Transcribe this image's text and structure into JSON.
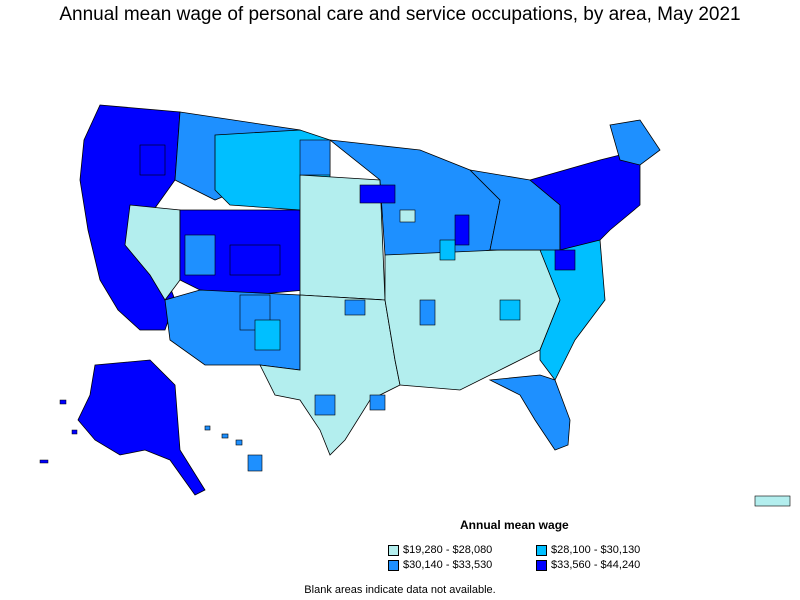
{
  "title": "Annual mean wage of personal care and service occupations, by area, May 2021",
  "legend": {
    "title": "Annual mean wage",
    "items": [
      {
        "label": "$19,280 - $28,080",
        "color": "#b3eeee"
      },
      {
        "label": "$28,100 - $30,130",
        "color": "#00bfff"
      },
      {
        "label": "$30,140 - $33,530",
        "color": "#1e90ff"
      },
      {
        "label": "$33,560 - $44,240",
        "color": "#0000ff"
      }
    ]
  },
  "note": "Blank areas indicate data not available.",
  "colors": {
    "tier1": "#b3eeee",
    "tier2": "#00bfff",
    "tier3": "#1e90ff",
    "tier4": "#0000ff",
    "border": "#000000"
  }
}
